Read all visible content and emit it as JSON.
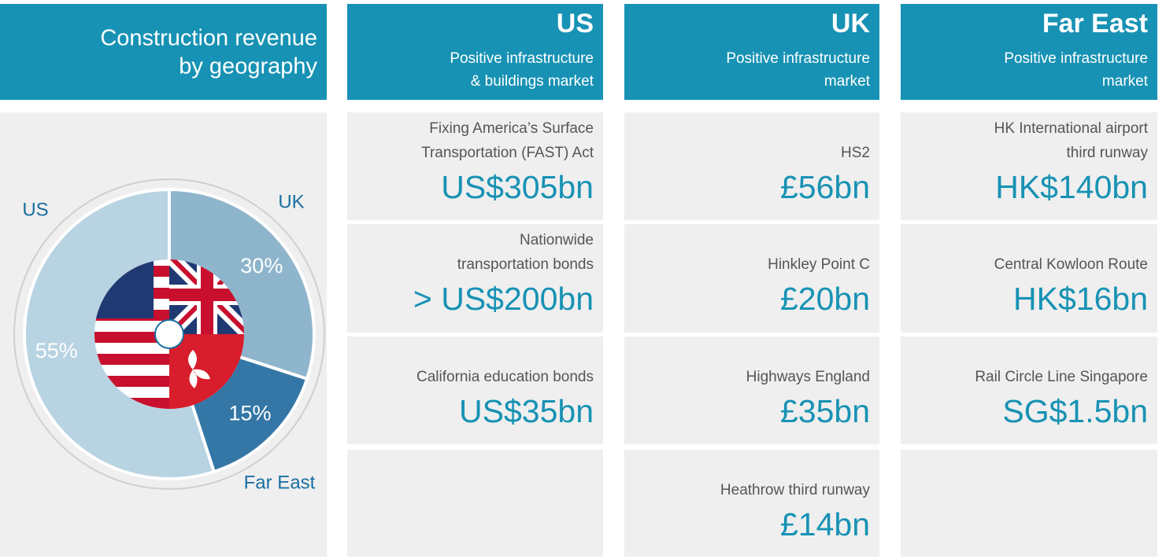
{
  "chart_data": {
    "type": "pie",
    "title": [
      "Construction revenue",
      "by geography"
    ],
    "categories": [
      "US",
      "UK",
      "Far East"
    ],
    "values": [
      55,
      30,
      15
    ],
    "value_labels": [
      "55%",
      "30%",
      "15%"
    ],
    "colors": [
      "#b8d3e2",
      "#8eb5cc",
      "#3477a6"
    ]
  },
  "columns": [
    {
      "title": "US",
      "subtitle": [
        "Positive infrastructure",
        "& buildings market"
      ],
      "rows": [
        {
          "label": [
            "Fixing America’s Surface",
            "Transportation (FAST) Act"
          ],
          "value": "US$305bn"
        },
        {
          "label": [
            "Nationwide",
            "transportation bonds"
          ],
          "value": "> US$200bn"
        },
        {
          "label": [
            "California education bonds"
          ],
          "value": "US$35bn"
        }
      ]
    },
    {
      "title": "UK",
      "subtitle": [
        "Positive infrastructure",
        "market"
      ],
      "rows": [
        {
          "label": [
            "HS2"
          ],
          "value": "£56bn"
        },
        {
          "label": [
            "Hinkley Point C"
          ],
          "value": "£20bn"
        },
        {
          "label": [
            "Highways England"
          ],
          "value": "£35bn"
        },
        {
          "label": [
            "Heathrow third runway"
          ],
          "value": "£14bn"
        }
      ]
    },
    {
      "title": "Far East",
      "subtitle": [
        "Positive infrastructure",
        "market"
      ],
      "rows": [
        {
          "label": [
            "HK International airport",
            "third runway"
          ],
          "value": "HK$140bn"
        },
        {
          "label": [
            "Central Kowloon Route"
          ],
          "value": "HK$16bn"
        },
        {
          "label": [
            "Rail Circle Line Singapore"
          ],
          "value": "SG$1.5bn"
        }
      ]
    }
  ]
}
